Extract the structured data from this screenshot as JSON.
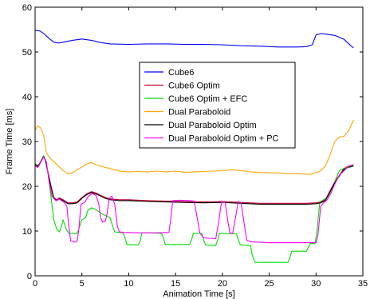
{
  "chart_data": {
    "type": "line",
    "title": "",
    "xlabel": "Animation Time [s]",
    "ylabel": "Frame Time [ms]",
    "xlim": [
      0,
      35
    ],
    "ylim": [
      0,
      60
    ],
    "xticks": [
      0,
      5,
      10,
      15,
      20,
      25,
      30,
      35
    ],
    "yticks": [
      0,
      10,
      20,
      30,
      40,
      50,
      60
    ],
    "grid": false,
    "legend_position": "center",
    "series": [
      {
        "name": "Cube6",
        "color": "#0000ff",
        "points": [
          [
            0,
            54.8
          ],
          [
            0.5,
            54.7
          ],
          [
            1,
            54
          ],
          [
            1.5,
            53
          ],
          [
            2,
            52.2
          ],
          [
            2.5,
            52
          ],
          [
            3,
            52.2
          ],
          [
            4,
            52.6
          ],
          [
            5,
            52.9
          ],
          [
            6,
            52.6
          ],
          [
            7,
            52.1
          ],
          [
            8,
            51.8
          ],
          [
            10,
            51.7
          ],
          [
            12,
            51.8
          ],
          [
            14,
            51.8
          ],
          [
            16,
            51.7
          ],
          [
            18,
            51.7
          ],
          [
            20,
            51.6
          ],
          [
            22,
            51.4
          ],
          [
            24,
            51.3
          ],
          [
            26,
            51.1
          ],
          [
            28,
            51.1
          ],
          [
            29,
            51.2
          ],
          [
            29.6,
            51.6
          ],
          [
            30,
            53.8
          ],
          [
            30.5,
            54.1
          ],
          [
            31,
            54
          ],
          [
            32,
            53.7
          ],
          [
            33,
            52.8
          ],
          [
            33.5,
            51.8
          ],
          [
            34,
            50.9
          ]
        ]
      },
      {
        "name": "Cube6 Optim",
        "color": "#cc0033",
        "points": [
          [
            0,
            25
          ],
          [
            0.3,
            24.5
          ],
          [
            0.6,
            25.5
          ],
          [
            0.9,
            26.8
          ],
          [
            1.1,
            26
          ],
          [
            1.4,
            23
          ],
          [
            1.7,
            20
          ],
          [
            2,
            17.5
          ],
          [
            2.3,
            17
          ],
          [
            2.6,
            17.4
          ],
          [
            3,
            17
          ],
          [
            3.5,
            16.3
          ],
          [
            4,
            16.3
          ],
          [
            4.5,
            16.5
          ],
          [
            5,
            17.5
          ],
          [
            5.5,
            18.3
          ],
          [
            6,
            18.8
          ],
          [
            6.5,
            18.5
          ],
          [
            7,
            18
          ],
          [
            7.5,
            17.5
          ],
          [
            8,
            17.2
          ],
          [
            9,
            17
          ],
          [
            10,
            17
          ],
          [
            12,
            16.8
          ],
          [
            14,
            16.7
          ],
          [
            16,
            16.6
          ],
          [
            18,
            16.5
          ],
          [
            20,
            16.6
          ],
          [
            22,
            16.4
          ],
          [
            24,
            16.2
          ],
          [
            26,
            16.2
          ],
          [
            28,
            16.2
          ],
          [
            29,
            16.2
          ],
          [
            30,
            16.3
          ],
          [
            30.5,
            16.5
          ],
          [
            31,
            17
          ],
          [
            31.5,
            19
          ],
          [
            32,
            21
          ],
          [
            32.5,
            22.5
          ],
          [
            33,
            24
          ],
          [
            33.5,
            24.5
          ],
          [
            34,
            24.8
          ]
        ]
      },
      {
        "name": "Cube6 Optim + EFC",
        "color": "#00dd00",
        "points": [
          [
            0,
            24.5
          ],
          [
            0.5,
            25
          ],
          [
            0.9,
            26.8
          ],
          [
            1.2,
            25.5
          ],
          [
            1.5,
            21
          ],
          [
            1.8,
            16
          ],
          [
            2,
            12.5
          ],
          [
            2.3,
            10.5
          ],
          [
            2.6,
            9.8
          ],
          [
            2.8,
            11
          ],
          [
            3,
            12.5
          ],
          [
            3.3,
            10.5
          ],
          [
            3.6,
            9.5
          ],
          [
            4.4,
            9.4
          ],
          [
            4.6,
            10
          ],
          [
            5,
            12.5
          ],
          [
            5.4,
            13
          ],
          [
            5.6,
            14.5
          ],
          [
            6,
            15.2
          ],
          [
            6.5,
            14.8
          ],
          [
            7,
            14
          ],
          [
            7.5,
            13.5
          ],
          [
            8,
            13
          ],
          [
            8.3,
            11
          ],
          [
            8.5,
            9.8
          ],
          [
            9,
            9.7
          ],
          [
            9.4,
            9.6
          ],
          [
            9.6,
            8.5
          ],
          [
            9.8,
            7
          ],
          [
            11,
            6.9
          ],
          [
            11.2,
            7.5
          ],
          [
            11.4,
            9.6
          ],
          [
            12,
            9.6
          ],
          [
            13.5,
            9.5
          ],
          [
            13.7,
            8.5
          ],
          [
            13.9,
            7
          ],
          [
            16.5,
            7
          ],
          [
            16.7,
            8
          ],
          [
            16.9,
            9.5
          ],
          [
            17.8,
            9.5
          ],
          [
            18,
            8
          ],
          [
            18.2,
            6.9
          ],
          [
            19.3,
            6.8
          ],
          [
            19.5,
            8
          ],
          [
            19.7,
            9.5
          ],
          [
            21.5,
            9.4
          ],
          [
            21.7,
            8
          ],
          [
            21.9,
            7
          ],
          [
            22.2,
            6.9
          ],
          [
            23,
            6.8
          ],
          [
            23.2,
            4.5
          ],
          [
            23.5,
            3
          ],
          [
            27,
            3
          ],
          [
            27.2,
            4
          ],
          [
            27.4,
            5.5
          ],
          [
            29,
            5.5
          ],
          [
            29.2,
            6.5
          ],
          [
            29.4,
            7.2
          ],
          [
            29.9,
            7.2
          ],
          [
            30.1,
            10
          ],
          [
            30.4,
            16.5
          ],
          [
            30.8,
            17
          ],
          [
            31.2,
            17.5
          ],
          [
            31.6,
            19
          ],
          [
            32,
            21
          ],
          [
            32.5,
            23.5
          ],
          [
            33,
            24
          ],
          [
            33.5,
            24.2
          ],
          [
            34,
            24.5
          ]
        ]
      },
      {
        "name": "Dual Paraboloid",
        "color": "#ffa500",
        "points": [
          [
            0,
            32.5
          ],
          [
            0.3,
            33.5
          ],
          [
            0.6,
            33
          ],
          [
            0.9,
            31.5
          ],
          [
            1.2,
            27.5
          ],
          [
            1.5,
            26.5
          ],
          [
            2,
            25.5
          ],
          [
            2.5,
            24.5
          ],
          [
            3,
            23.5
          ],
          [
            3.5,
            22.8
          ],
          [
            4,
            23
          ],
          [
            4.5,
            23.7
          ],
          [
            5,
            24.3
          ],
          [
            5.5,
            25
          ],
          [
            6,
            25.3
          ],
          [
            6.5,
            24.8
          ],
          [
            7,
            24.5
          ],
          [
            7.5,
            24.2
          ],
          [
            8,
            24
          ],
          [
            8.5,
            23.7
          ],
          [
            9,
            23.4
          ],
          [
            10,
            23.2
          ],
          [
            11,
            23.3
          ],
          [
            12,
            23.2
          ],
          [
            13,
            23.4
          ],
          [
            14,
            23.2
          ],
          [
            15,
            23.4
          ],
          [
            16,
            23.1
          ],
          [
            17,
            23.2
          ],
          [
            18,
            23.3
          ],
          [
            19,
            23.4
          ],
          [
            20,
            23.5
          ],
          [
            21,
            23.7
          ],
          [
            22,
            23.5
          ],
          [
            23,
            23.2
          ],
          [
            24,
            23.1
          ],
          [
            25,
            23
          ],
          [
            26,
            23
          ],
          [
            27,
            22.8
          ],
          [
            28,
            22.8
          ],
          [
            29,
            22.7
          ],
          [
            29.5,
            22.7
          ],
          [
            30,
            23
          ],
          [
            30.5,
            23.5
          ],
          [
            31,
            24.5
          ],
          [
            31.5,
            27
          ],
          [
            32,
            30
          ],
          [
            32.5,
            31
          ],
          [
            33,
            31.2
          ],
          [
            33.5,
            32.5
          ],
          [
            34,
            34.8
          ]
        ]
      },
      {
        "name": "Dual Paraboloid Optim",
        "color": "#000000",
        "points": [
          [
            0,
            25
          ],
          [
            0.3,
            24.4
          ],
          [
            0.6,
            25.4
          ],
          [
            0.9,
            26.6
          ],
          [
            1.1,
            25.8
          ],
          [
            1.4,
            22.8
          ],
          [
            1.7,
            19.8
          ],
          [
            2,
            17.3
          ],
          [
            2.3,
            16.8
          ],
          [
            2.6,
            17.2
          ],
          [
            3,
            16.8
          ],
          [
            3.5,
            16.1
          ],
          [
            4,
            16.1
          ],
          [
            4.5,
            16.3
          ],
          [
            5,
            17.3
          ],
          [
            5.5,
            18.1
          ],
          [
            6,
            18.6
          ],
          [
            6.5,
            18.3
          ],
          [
            7,
            17.8
          ],
          [
            7.5,
            17.3
          ],
          [
            8,
            17
          ],
          [
            9,
            16.8
          ],
          [
            10,
            16.8
          ],
          [
            12,
            16.6
          ],
          [
            14,
            16.5
          ],
          [
            16,
            16.4
          ],
          [
            18,
            16.3
          ],
          [
            20,
            16.4
          ],
          [
            22,
            16.2
          ],
          [
            24,
            16
          ],
          [
            26,
            16
          ],
          [
            28,
            16
          ],
          [
            29,
            16
          ],
          [
            30,
            16.1
          ],
          [
            30.5,
            16.3
          ],
          [
            31,
            16.8
          ],
          [
            31.5,
            18.8
          ],
          [
            32,
            20.8
          ],
          [
            32.5,
            22.3
          ],
          [
            33,
            23.8
          ],
          [
            33.5,
            24.3
          ],
          [
            34,
            24.6
          ]
        ]
      },
      {
        "name": "Dual Paraboloid Optim + PC",
        "color": "#ff00ff",
        "points": [
          [
            0,
            24.5
          ],
          [
            0.3,
            24.2
          ],
          [
            0.6,
            25.3
          ],
          [
            0.9,
            26.5
          ],
          [
            1.2,
            25.5
          ],
          [
            1.5,
            21
          ],
          [
            1.8,
            17.8
          ],
          [
            2.2,
            16.8
          ],
          [
            2.6,
            17.1
          ],
          [
            3.1,
            16.4
          ],
          [
            3.4,
            15.5
          ],
          [
            3.6,
            11
          ],
          [
            3.8,
            7.8
          ],
          [
            4.2,
            7.5
          ],
          [
            4.5,
            7.7
          ],
          [
            4.7,
            11
          ],
          [
            4.9,
            16
          ],
          [
            5.3,
            16.4
          ],
          [
            5.7,
            17.8
          ],
          [
            6.1,
            18.4
          ],
          [
            6.5,
            18
          ],
          [
            6.8,
            16
          ],
          [
            7,
            13
          ],
          [
            7.2,
            12
          ],
          [
            7.5,
            12.2
          ],
          [
            7.7,
            14
          ],
          [
            7.9,
            17.2
          ],
          [
            8.2,
            17.8
          ],
          [
            8.5,
            16
          ],
          [
            8.8,
            11
          ],
          [
            9,
            9.8
          ],
          [
            9.5,
            9.7
          ],
          [
            11,
            9.6
          ],
          [
            13,
            9.6
          ],
          [
            14.3,
            9.7
          ],
          [
            14.5,
            13
          ],
          [
            14.7,
            16.8
          ],
          [
            15.5,
            16.9
          ],
          [
            16.5,
            16.8
          ],
          [
            17,
            16.7
          ],
          [
            17.3,
            13
          ],
          [
            17.6,
            9.5
          ],
          [
            18,
            8.5
          ],
          [
            18.5,
            8.4
          ],
          [
            19.3,
            8.3
          ],
          [
            19.6,
            12
          ],
          [
            19.9,
            16.5
          ],
          [
            20.3,
            16.3
          ],
          [
            20.6,
            12
          ],
          [
            20.8,
            9.5
          ],
          [
            21.1,
            9.5
          ],
          [
            21.4,
            13
          ],
          [
            21.7,
            16.6
          ],
          [
            22,
            16.3
          ],
          [
            22.3,
            12
          ],
          [
            22.6,
            8
          ],
          [
            23,
            7.6
          ],
          [
            25,
            7.4
          ],
          [
            27,
            7.4
          ],
          [
            29,
            7.4
          ],
          [
            30,
            7.4
          ],
          [
            30.2,
            9
          ],
          [
            30.5,
            15.5
          ],
          [
            30.8,
            16.3
          ],
          [
            31.2,
            17
          ],
          [
            31.6,
            18.5
          ],
          [
            32,
            20.5
          ],
          [
            32.5,
            22.5
          ],
          [
            33,
            23.5
          ],
          [
            33.5,
            24.5
          ],
          [
            34,
            24.8
          ]
        ]
      }
    ]
  }
}
